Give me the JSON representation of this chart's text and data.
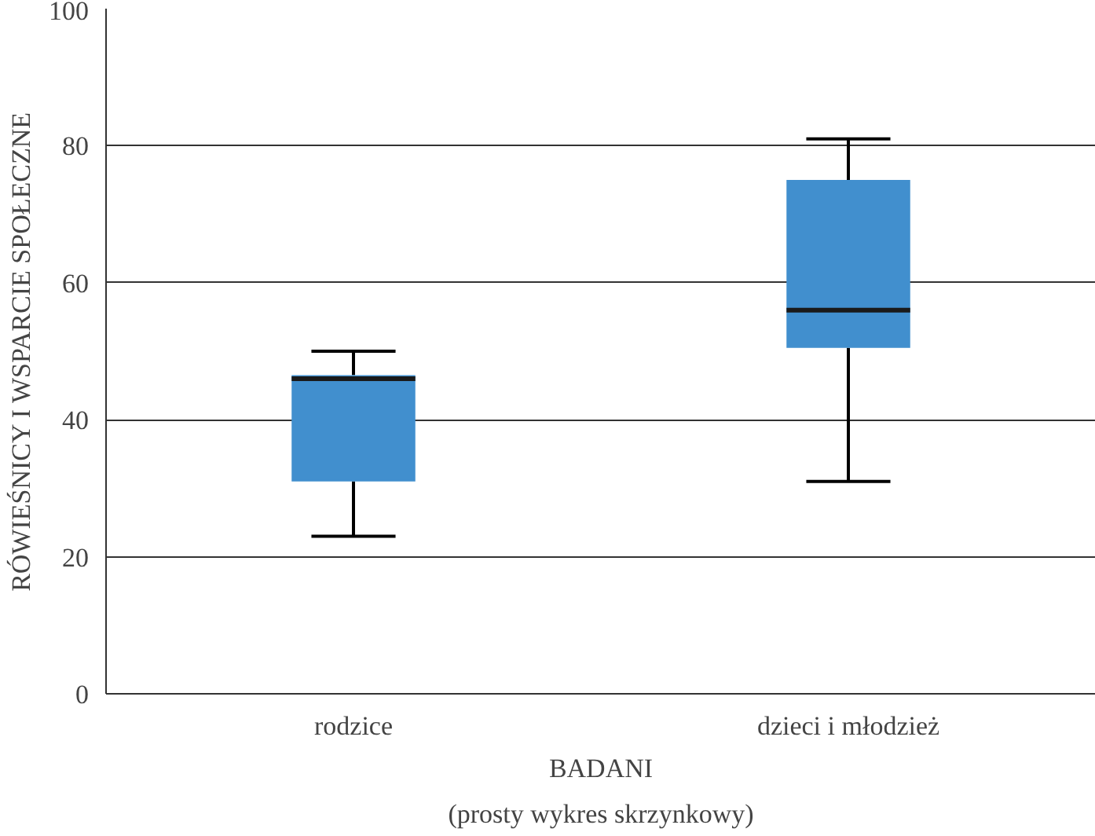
{
  "chart_data": {
    "type": "box",
    "categories": [
      "rodzice",
      "dzieci i młodzież"
    ],
    "boxes": [
      {
        "low": 23,
        "q1": 31,
        "median": 46,
        "q3": 46.5,
        "high": 50
      },
      {
        "low": 31,
        "q1": 50.5,
        "median": 56,
        "q3": 75,
        "high": 81
      }
    ],
    "color": "#418fce",
    "ylim": [
      0,
      100
    ],
    "yticks": [
      0,
      20,
      40,
      60,
      80,
      100
    ],
    "grid": "y",
    "xlabel": "BADANI",
    "ylabel": "RÓWIEŚNICY I WSPARCIE SPOŁECZNE",
    "annotations": [
      "(prosty wykres skrzynkowy)"
    ]
  }
}
